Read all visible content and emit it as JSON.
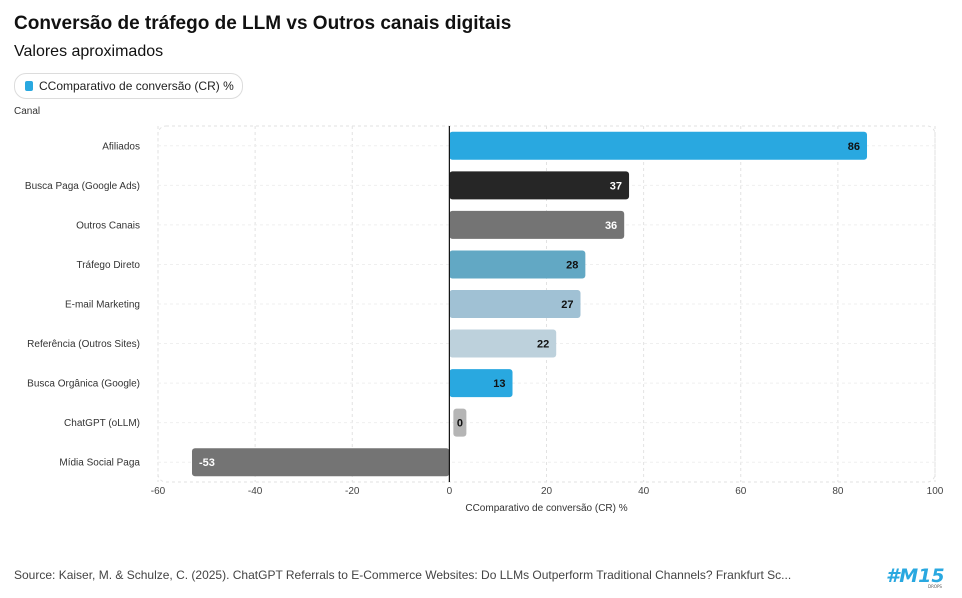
{
  "title": "Conversão de tráfego de LLM vs Outros canais digitais",
  "subtitle": "Valores aproximados",
  "legend": {
    "label": "CComparativo de conversão (CR) %",
    "color": "#29a8e0"
  },
  "y_axis_title": "Canal",
  "source": "Source: Kaiser, M. & Schulze, C. (2025). ChatGPT Referrals to E-Commerce Websites: Do LLMs Outperform Traditional Channels? Frankfurt Sc...",
  "logo": {
    "text": "#M15",
    "subtext": "DROPS",
    "color": "#29a8e0"
  },
  "chart_data": {
    "type": "bar",
    "orientation": "horizontal",
    "title": "Conversão de tráfego de LLM vs Outros canais digitais",
    "subtitle": "Valores aproximados",
    "xlabel": "CComparativo de conversão (CR) %",
    "ylabel": "Canal",
    "xlim": [
      -60,
      100
    ],
    "xticks": [
      -60,
      -40,
      -20,
      0,
      20,
      40,
      60,
      80,
      100
    ],
    "grid": true,
    "legend_position": "top-left",
    "series_name": "CComparativo de conversão (CR) %",
    "categories": [
      "Afiliados",
      "Busca Paga (Google Ads)",
      "Outros Canais",
      "Tráfego Direto",
      "E-mail Marketing",
      "Referência (Outros Sites)",
      "Busca Orgânica (Google)",
      "ChatGPT (oLLM)",
      "Mídia Social Paga"
    ],
    "values": [
      86,
      37,
      36,
      28,
      27,
      22,
      13,
      0,
      -53
    ],
    "colors": [
      "#29a8e0",
      "#262626",
      "#747474",
      "#62a8c4",
      "#a0c1d4",
      "#bdd1dc",
      "#29a8e0",
      "#b5b5b5",
      "#747474"
    ],
    "label_colors": [
      "#111111",
      "#ffffff",
      "#ffffff",
      "#111111",
      "#111111",
      "#111111",
      "#111111",
      "#111111",
      "#ffffff"
    ]
  }
}
